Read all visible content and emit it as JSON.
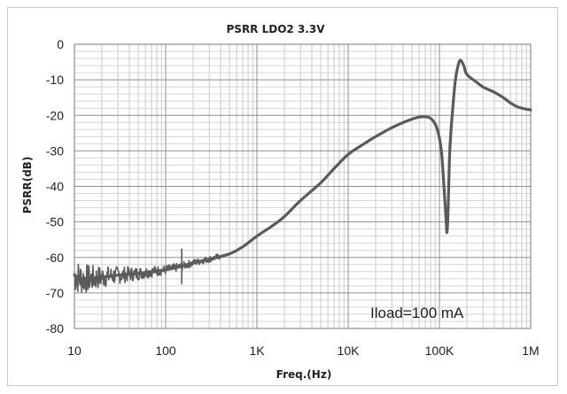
{
  "chart_data": {
    "type": "line",
    "title": "PSRR LDO2 3.3V",
    "xlabel": "Freq.(Hz)",
    "ylabel": "PSRR(dB)",
    "x_scale": "log",
    "xlim": [
      10,
      1000000
    ],
    "ylim": [
      -80,
      0
    ],
    "x_ticks": [
      {
        "value": 10,
        "label": "10"
      },
      {
        "value": 100,
        "label": "100"
      },
      {
        "value": 1000,
        "label": "1K"
      },
      {
        "value": 10000,
        "label": "10K"
      },
      {
        "value": 100000,
        "label": "100K"
      },
      {
        "value": 1000000,
        "label": "1M"
      }
    ],
    "y_ticks": [
      {
        "value": 0,
        "label": "0"
      },
      {
        "value": -10,
        "label": "-10"
      },
      {
        "value": -20,
        "label": "-20"
      },
      {
        "value": -30,
        "label": "-30"
      },
      {
        "value": -40,
        "label": "-40"
      },
      {
        "value": -50,
        "label": "-50"
      },
      {
        "value": -60,
        "label": "-60"
      },
      {
        "value": -70,
        "label": "-70"
      },
      {
        "value": -80,
        "label": "-80"
      }
    ],
    "grid": true,
    "legend": "none",
    "annotation": "Iload=100 mA",
    "line_color": "#5a5a5a",
    "series": [
      {
        "x": [
          10,
          12,
          15,
          20,
          30,
          50,
          70,
          100,
          150,
          200,
          300,
          500,
          700,
          1000,
          1500,
          2000,
          3000,
          5000,
          7000,
          10000,
          15000,
          20000,
          30000,
          45000,
          60000,
          75000,
          85000,
          95000,
          105000,
          112000,
          118000,
          121000,
          124000,
          130000,
          140000,
          150000,
          160000,
          170000,
          185000,
          200000,
          250000,
          300000,
          400000,
          500000,
          600000,
          700000,
          800000,
          1000000
        ],
        "y": [
          -65,
          -66,
          -66,
          -65.5,
          -65,
          -64.5,
          -64,
          -63.5,
          -62.5,
          -61.5,
          -60.5,
          -59,
          -57,
          -54,
          -51,
          -48.5,
          -44,
          -39,
          -35,
          -31,
          -28,
          -26,
          -23.5,
          -21.5,
          -20.5,
          -20.5,
          -21.5,
          -24,
          -30,
          -40,
          -49,
          -53,
          -48,
          -30,
          -18,
          -10,
          -6,
          -4.5,
          -6,
          -8.5,
          -10.5,
          -12,
          -13.5,
          -15,
          -16.5,
          -17.5,
          -18,
          -18.5
        ]
      }
    ]
  }
}
